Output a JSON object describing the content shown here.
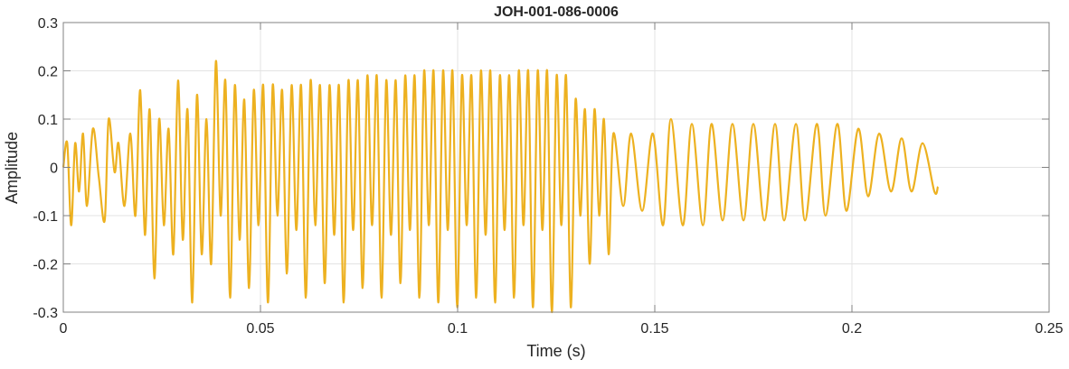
{
  "chart_data": {
    "type": "line",
    "title": "JOH-001-086-0006",
    "xlabel": "Time (s)",
    "ylabel": "Amplitude",
    "xlim": [
      0,
      0.25
    ],
    "ylim": [
      -0.3,
      0.3
    ],
    "xticks": [
      0,
      0.05,
      0.1,
      0.15,
      0.2,
      0.25
    ],
    "xtick_labels": [
      "0",
      "0.05",
      "0.1",
      "0.15",
      "0.2",
      "0.25"
    ],
    "yticks": [
      -0.3,
      -0.2,
      -0.1,
      0,
      0.1,
      0.2,
      0.3
    ],
    "ytick_labels": [
      "-0.3",
      "-0.2",
      "-0.1",
      "0",
      "0.1",
      "0.2",
      "0.3"
    ],
    "grid": true,
    "line_color": "#EDB120",
    "series": [
      {
        "points": [
          [
            0,
            0
          ],
          [
            0.001,
            0.05
          ],
          [
            0.002,
            -0.12
          ],
          [
            0.003,
            0.05
          ],
          [
            0.004,
            -0.05
          ],
          [
            0.005,
            0.07
          ],
          [
            0.006,
            -0.08
          ],
          [
            0.0075,
            0.08
          ],
          [
            0.009,
            -0.02
          ],
          [
            0.0105,
            -0.11
          ],
          [
            0.0115,
            0.1
          ],
          [
            0.013,
            -0.01
          ],
          [
            0.014,
            0.05
          ],
          [
            0.0155,
            -0.08
          ],
          [
            0.017,
            0.07
          ],
          [
            0.0183,
            -0.1
          ],
          [
            0.0195,
            0.16
          ],
          [
            0.0207,
            -0.14
          ],
          [
            0.0219,
            0.12
          ],
          [
            0.0231,
            -0.23
          ],
          [
            0.0243,
            0.1
          ],
          [
            0.0255,
            -0.12
          ],
          [
            0.0267,
            0.08
          ],
          [
            0.0279,
            -0.18
          ],
          [
            0.0291,
            0.18
          ],
          [
            0.0303,
            -0.15
          ],
          [
            0.0315,
            0.12
          ],
          [
            0.0327,
            -0.28
          ],
          [
            0.0339,
            0.15
          ],
          [
            0.0351,
            -0.18
          ],
          [
            0.0363,
            0.1
          ],
          [
            0.0375,
            -0.2
          ],
          [
            0.0387,
            0.22
          ],
          [
            0.0399,
            -0.1
          ],
          [
            0.0411,
            0.18
          ],
          [
            0.0423,
            -0.27
          ],
          [
            0.0435,
            0.17
          ],
          [
            0.0447,
            -0.15
          ],
          [
            0.0459,
            0.14
          ],
          [
            0.0471,
            -0.25
          ],
          [
            0.0483,
            0.16
          ],
          [
            0.0495,
            -0.12
          ],
          [
            0.0507,
            0.17
          ],
          [
            0.0519,
            -0.28
          ],
          [
            0.0531,
            0.17
          ],
          [
            0.0543,
            -0.1
          ],
          [
            0.0555,
            0.16
          ],
          [
            0.0567,
            -0.22
          ],
          [
            0.0579,
            0.17
          ],
          [
            0.0591,
            -0.13
          ],
          [
            0.0603,
            0.17
          ],
          [
            0.0615,
            -0.27
          ],
          [
            0.0627,
            0.18
          ],
          [
            0.0639,
            -0.12
          ],
          [
            0.0651,
            0.17
          ],
          [
            0.0663,
            -0.24
          ],
          [
            0.0675,
            0.17
          ],
          [
            0.0687,
            -0.14
          ],
          [
            0.0699,
            0.17
          ],
          [
            0.0711,
            -0.28
          ],
          [
            0.0723,
            0.18
          ],
          [
            0.0735,
            -0.13
          ],
          [
            0.0747,
            0.18
          ],
          [
            0.0759,
            -0.25
          ],
          [
            0.0771,
            0.19
          ],
          [
            0.0783,
            -0.12
          ],
          [
            0.0795,
            0.19
          ],
          [
            0.0807,
            -0.27
          ],
          [
            0.0819,
            0.18
          ],
          [
            0.0831,
            -0.14
          ],
          [
            0.0843,
            0.18
          ],
          [
            0.0855,
            -0.24
          ],
          [
            0.0867,
            0.19
          ],
          [
            0.0879,
            -0.13
          ],
          [
            0.0891,
            0.19
          ],
          [
            0.0903,
            -0.27
          ],
          [
            0.0915,
            0.2
          ],
          [
            0.0927,
            -0.12
          ],
          [
            0.0939,
            0.2
          ],
          [
            0.0951,
            -0.28
          ],
          [
            0.0963,
            0.2
          ],
          [
            0.0975,
            -0.13
          ],
          [
            0.0987,
            0.2
          ],
          [
            0.0999,
            -0.29
          ],
          [
            0.1011,
            0.19
          ],
          [
            0.1023,
            -0.12
          ],
          [
            0.1035,
            0.19
          ],
          [
            0.1047,
            -0.27
          ],
          [
            0.1059,
            0.2
          ],
          [
            0.1071,
            -0.14
          ],
          [
            0.1083,
            0.2
          ],
          [
            0.1095,
            -0.28
          ],
          [
            0.1107,
            0.19
          ],
          [
            0.1119,
            -0.13
          ],
          [
            0.1131,
            0.19
          ],
          [
            0.1143,
            -0.27
          ],
          [
            0.1155,
            0.2
          ],
          [
            0.1167,
            -0.12
          ],
          [
            0.1179,
            0.2
          ],
          [
            0.1191,
            -0.29
          ],
          [
            0.1203,
            0.2
          ],
          [
            0.1215,
            -0.13
          ],
          [
            0.1227,
            0.2
          ],
          [
            0.1239,
            -0.3
          ],
          [
            0.1251,
            0.19
          ],
          [
            0.1263,
            -0.12
          ],
          [
            0.1275,
            0.19
          ],
          [
            0.1287,
            -0.29
          ],
          [
            0.1299,
            0.14
          ],
          [
            0.1311,
            -0.1
          ],
          [
            0.1323,
            0.12
          ],
          [
            0.1335,
            -0.2
          ],
          [
            0.1347,
            0.12
          ],
          [
            0.1359,
            -0.1
          ],
          [
            0.1371,
            0.1
          ],
          [
            0.1383,
            -0.18
          ],
          [
            0.1395,
            0.07
          ],
          [
            0.142,
            -0.08
          ],
          [
            0.144,
            0.07
          ],
          [
            0.1468,
            -0.09
          ],
          [
            0.1495,
            0.07
          ],
          [
            0.1521,
            -0.12
          ],
          [
            0.1541,
            0.1
          ],
          [
            0.1571,
            -0.12
          ],
          [
            0.1594,
            0.09
          ],
          [
            0.1622,
            -0.12
          ],
          [
            0.1644,
            0.09
          ],
          [
            0.1672,
            -0.11
          ],
          [
            0.1697,
            0.09
          ],
          [
            0.1725,
            -0.11
          ],
          [
            0.175,
            0.09
          ],
          [
            0.1778,
            -0.11
          ],
          [
            0.1805,
            0.09
          ],
          [
            0.1828,
            -0.11
          ],
          [
            0.1858,
            0.09
          ],
          [
            0.1881,
            -0.11
          ],
          [
            0.1911,
            0.09
          ],
          [
            0.1933,
            -0.1
          ],
          [
            0.1963,
            0.09
          ],
          [
            0.1986,
            -0.09
          ],
          [
            0.2016,
            0.08
          ],
          [
            0.2041,
            -0.06
          ],
          [
            0.2069,
            0.07
          ],
          [
            0.2099,
            -0.05
          ],
          [
            0.2126,
            0.06
          ],
          [
            0.2151,
            -0.05
          ],
          [
            0.2179,
            0.05
          ],
          [
            0.2209,
            -0.05
          ],
          [
            0.2218,
            -0.04
          ]
        ]
      }
    ]
  }
}
